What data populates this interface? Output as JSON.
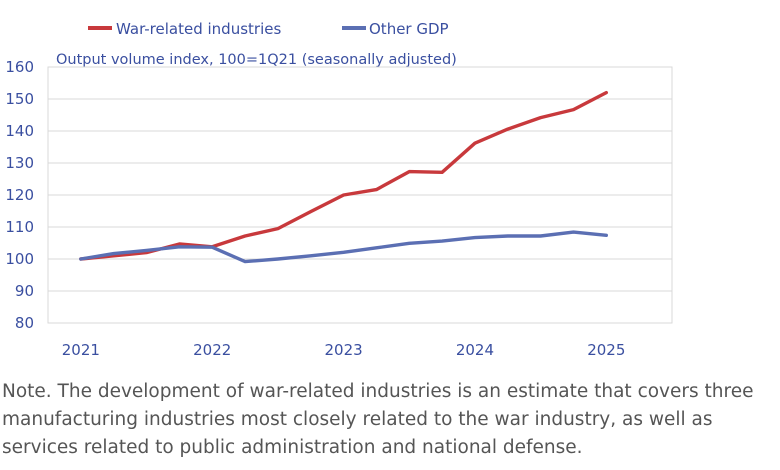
{
  "chart_data": {
    "type": "line",
    "subtitle": "Output volume index, 100=1Q21 (seasonally adjusted)",
    "x_tick_labels": [
      "2021",
      "2022",
      "2023",
      "2024",
      "2025"
    ],
    "y_tick_labels": [
      "80",
      "90",
      "100",
      "110",
      "120",
      "130",
      "140",
      "150",
      "160"
    ],
    "ylim": [
      80,
      160
    ],
    "xlim": [
      2020.75,
      2025.5
    ],
    "grid": "horizontal",
    "legend_position": "top",
    "x": [
      2021.0,
      2021.25,
      2021.5,
      2021.75,
      2022.0,
      2022.25,
      2022.5,
      2022.75,
      2023.0,
      2023.25,
      2023.5,
      2023.75,
      2024.0,
      2024.25,
      2024.5,
      2024.75,
      2025.0
    ],
    "series": [
      {
        "name": "War-related industries",
        "color": "#c8393c",
        "values": [
          100,
          101.0,
          102.0,
          104.7,
          103.8,
          107.2,
          109.5,
          114.8,
          120.0,
          121.7,
          127.3,
          127.1,
          136.2,
          140.6,
          144.2,
          146.7,
          152.0
        ]
      },
      {
        "name": "Other GDP",
        "color": "#5b6fb3",
        "values": [
          100,
          101.7,
          102.7,
          103.8,
          103.7,
          99.2,
          100.0,
          101.0,
          102.1,
          103.5,
          104.9,
          105.6,
          106.7,
          107.2,
          107.2,
          108.4,
          107.4
        ]
      }
    ]
  },
  "note": "Note. The development of war-related industries is an estimate that covers three manufacturing industries most closely related to the war industry, as well as services related to public administration and national defense."
}
